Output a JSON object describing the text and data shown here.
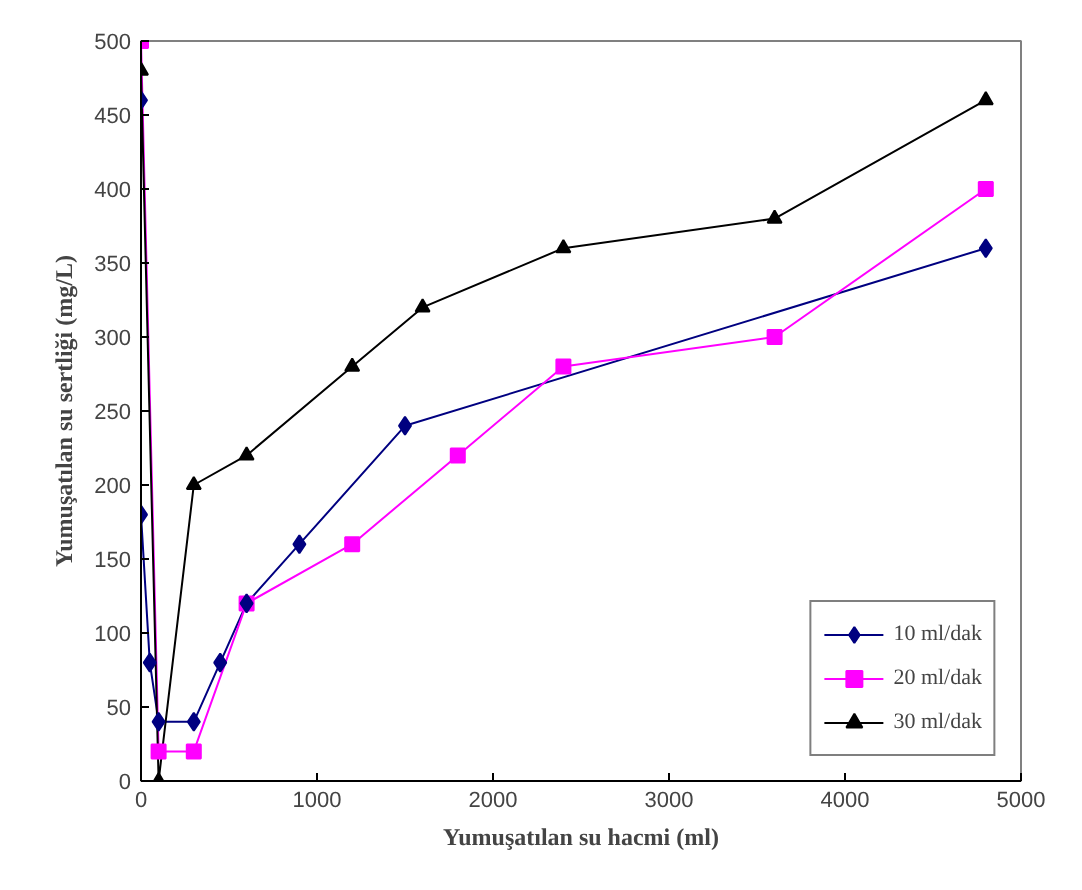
{
  "chart_data": {
    "type": "line",
    "xlabel": "Yumuşatılan su hacmi (ml)",
    "ylabel": "Yumuşatılan su sertliği (mg/L)",
    "xlim": [
      0,
      5000
    ],
    "xticks": [
      0,
      1000,
      2000,
      3000,
      4000,
      5000
    ],
    "ylim": [
      0,
      500
    ],
    "yticks": [
      0,
      50,
      100,
      150,
      200,
      250,
      300,
      350,
      400,
      450,
      500
    ],
    "grid": false,
    "legend": "bottom right",
    "line_style": "solid",
    "series": [
      {
        "name": "10 ml/dak",
        "color": "#000080",
        "marker": "diamond",
        "x": [
          0,
          0,
          50,
          100,
          300,
          450,
          600,
          900,
          1500,
          4800
        ],
        "values": [
          460,
          180,
          80,
          40,
          40,
          80,
          120,
          160,
          240,
          360
        ]
      },
      {
        "name": "20 ml/dak",
        "color": "#ff00ff",
        "marker": "square",
        "x": [
          0,
          100,
          300,
          600,
          1200,
          1800,
          2400,
          3600,
          4800
        ],
        "values": [
          500,
          20,
          20,
          120,
          160,
          220,
          280,
          300,
          400
        ]
      },
      {
        "name": "30 ml/dak",
        "color": "#000000",
        "marker": "triangle",
        "x": [
          0,
          100,
          300,
          600,
          1200,
          1600,
          2400,
          3600,
          4800
        ],
        "values": [
          480,
          0,
          200,
          220,
          280,
          320,
          360,
          380,
          460
        ]
      }
    ]
  }
}
